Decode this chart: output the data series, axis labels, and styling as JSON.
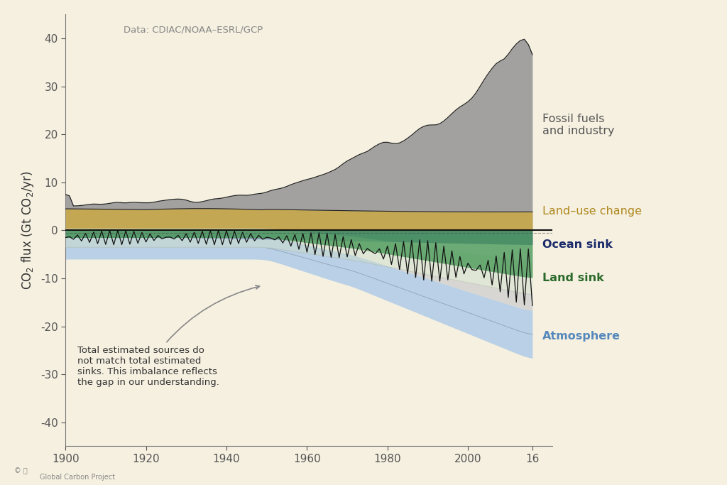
{
  "bg_color": "#f5f0e0",
  "fossil_color": "#999999",
  "fossil_line_color": "#222222",
  "land_use_color": "#c8a84a",
  "land_use_line_color": "#222222",
  "ocean_color": "#3a5599",
  "land_sink_color": "#4a9a5a",
  "land_sink_line_color": "#111111",
  "land_uncertainty_color": "#ccddcc",
  "atmosphere_color": "#aac8e8",
  "imbalance_color": "#cccccc",
  "imbalance_alpha": 0.7,
  "zero_line_color": "#111111",
  "dashed_line_color": "#444444",
  "ylabel": "CO$_2$ flux (Gt CO$_2$/yr)",
  "data_source": "Data: CDIAC/NOAA–ESRL/GCP",
  "label_fossil": "Fossil fuels\nand industry",
  "label_land_use": "Land–use change",
  "label_ocean": "Ocean sink",
  "label_land": "Land sink",
  "label_atm": "Atmosphere",
  "annotation_text": "Total estimated sources do\nnot match total estimated\nsinks. This imbalance reflects\nthe gap in our understanding.",
  "fossil_label_color": "#555555",
  "land_use_label_color": "#b08820",
  "ocean_label_color": "#1a2a6a",
  "land_label_color": "#2a6a2a",
  "atm_label_color": "#5588bb",
  "ylim": [
    -45,
    45
  ],
  "xlim_start": 1900,
  "xlim_end": 2016,
  "xtick_labels": [
    "1900",
    "1920",
    "1940",
    "1960",
    "1980",
    "2000",
    "16"
  ],
  "xtick_vals": [
    1900,
    1920,
    1940,
    1960,
    1980,
    2000,
    2016
  ],
  "ytick_vals": [
    -40,
    -30,
    -20,
    -10,
    0,
    10,
    20,
    30,
    40
  ]
}
